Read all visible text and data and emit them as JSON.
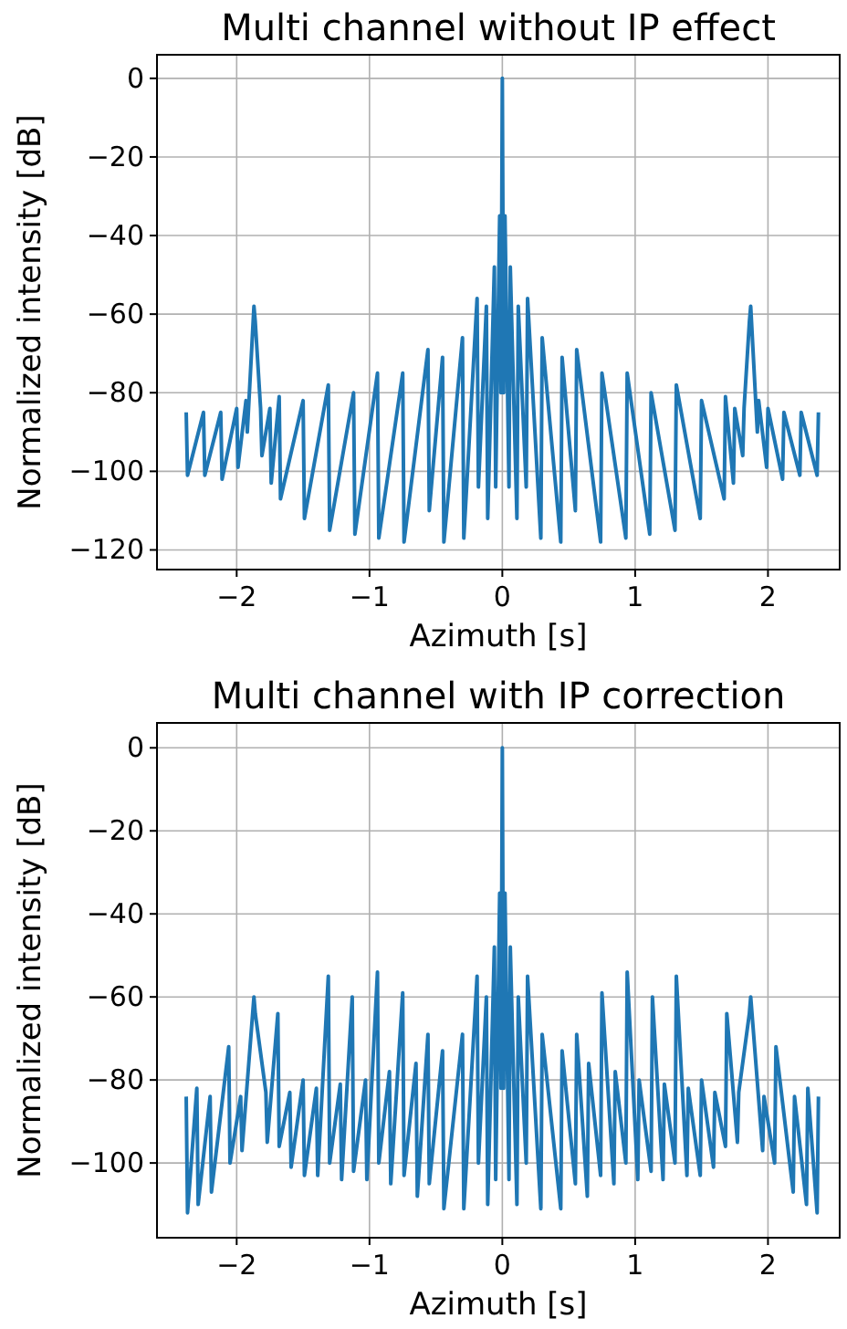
{
  "chart_data": [
    {
      "type": "line",
      "title": "Multi channel without IP effect",
      "xlabel": "Azimuth [s]",
      "ylabel": "Normalized intensity [dB]",
      "xlim": [
        -2.6,
        2.54
      ],
      "ylim": [
        -125,
        6
      ],
      "xticks": [
        -2,
        -1,
        0,
        1,
        2
      ],
      "yticks": [
        -120,
        -100,
        -80,
        -60,
        -40,
        -20,
        0
      ],
      "grid": true,
      "series": [
        {
          "color": "#1f77b4",
          "x": [
            -2.38,
            -2.37,
            -2.25,
            -2.24,
            -2.12,
            -2.11,
            -2.0,
            -1.99,
            -1.93,
            -1.92,
            -1.87,
            -1.86,
            -1.82,
            -1.81,
            -1.75,
            -1.74,
            -1.68,
            -1.67,
            -1.5,
            -1.49,
            -1.31,
            -1.3,
            -1.12,
            -1.11,
            -0.94,
            -0.93,
            -0.75,
            -0.74,
            -0.56,
            -0.55,
            -0.45,
            -0.44,
            -0.3,
            -0.29,
            -0.19,
            -0.18,
            -0.12,
            -0.11,
            -0.06,
            -0.05,
            -0.02,
            -0.01,
            0,
            0.01,
            0.02,
            0.05,
            0.06,
            0.11,
            0.12,
            0.18,
            0.19,
            0.29,
            0.3,
            0.44,
            0.45,
            0.55,
            0.56,
            0.74,
            0.75,
            0.93,
            0.94,
            1.11,
            1.12,
            1.3,
            1.31,
            1.49,
            1.5,
            1.67,
            1.68,
            1.74,
            1.75,
            1.81,
            1.82,
            1.86,
            1.87,
            1.92,
            1.93,
            1.99,
            2.0,
            2.11,
            2.12,
            2.24,
            2.25,
            2.37,
            2.38
          ],
          "values": [
            -85,
            -101,
            -85,
            -101,
            -85,
            -102,
            -84,
            -99,
            -82,
            -90,
            -58,
            -62,
            -84,
            -96,
            -84,
            -103,
            -81,
            -107,
            -82,
            -112,
            -78,
            -115,
            -80,
            -116,
            -75,
            -117,
            -75,
            -118,
            -69,
            -110,
            -71,
            -118,
            -66,
            -117,
            -56,
            -104,
            -58,
            -112,
            -48,
            -104,
            -35,
            -80,
            0,
            -80,
            -35,
            -104,
            -48,
            -112,
            -58,
            -104,
            -56,
            -117,
            -66,
            -118,
            -71,
            -110,
            -69,
            -118,
            -75,
            -117,
            -75,
            -116,
            -80,
            -115,
            -78,
            -112,
            -82,
            -107,
            -81,
            -103,
            -84,
            -96,
            -84,
            -62,
            -58,
            -90,
            -82,
            -99,
            -84,
            -102,
            -85,
            -101,
            -85,
            -101,
            -85
          ]
        }
      ]
    },
    {
      "type": "line",
      "title": "Multi channel with IP correction",
      "xlabel": "Azimuth [s]",
      "ylabel": "Normalized intensity [dB]",
      "xlim": [
        -2.6,
        2.54
      ],
      "ylim": [
        -118,
        6
      ],
      "xticks": [
        -2,
        -1,
        0,
        1,
        2
      ],
      "yticks": [
        -100,
        -80,
        -60,
        -40,
        -20,
        0
      ],
      "grid": true,
      "series": [
        {
          "color": "#1f77b4",
          "x": [
            -2.38,
            -2.37,
            -2.3,
            -2.29,
            -2.2,
            -2.19,
            -2.06,
            -2.05,
            -1.97,
            -1.96,
            -1.87,
            -1.86,
            -1.78,
            -1.77,
            -1.69,
            -1.68,
            -1.6,
            -1.59,
            -1.5,
            -1.49,
            -1.4,
            -1.39,
            -1.31,
            -1.3,
            -1.22,
            -1.21,
            -1.13,
            -1.12,
            -1.03,
            -1.02,
            -0.94,
            -0.93,
            -0.85,
            -0.84,
            -0.75,
            -0.74,
            -0.65,
            -0.64,
            -0.56,
            -0.55,
            -0.45,
            -0.44,
            -0.3,
            -0.29,
            -0.19,
            -0.18,
            -0.12,
            -0.11,
            -0.06,
            -0.05,
            -0.02,
            -0.01,
            0,
            0.01,
            0.02,
            0.05,
            0.06,
            0.11,
            0.12,
            0.18,
            0.19,
            0.29,
            0.3,
            0.44,
            0.45,
            0.55,
            0.56,
            0.64,
            0.65,
            0.74,
            0.75,
            0.84,
            0.85,
            0.93,
            0.94,
            1.02,
            1.03,
            1.12,
            1.13,
            1.21,
            1.22,
            1.3,
            1.31,
            1.39,
            1.4,
            1.49,
            1.5,
            1.59,
            1.6,
            1.68,
            1.69,
            1.77,
            1.78,
            1.86,
            1.87,
            1.96,
            1.97,
            2.05,
            2.06,
            2.19,
            2.2,
            2.29,
            2.3,
            2.37,
            2.38
          ],
          "values": [
            -84,
            -112,
            -82,
            -110,
            -84,
            -107,
            -72,
            -100,
            -84,
            -97,
            -60,
            -64,
            -83,
            -95,
            -64,
            -96,
            -83,
            -101,
            -80,
            -103,
            -82,
            -103,
            -55,
            -100,
            -81,
            -104,
            -60,
            -102,
            -80,
            -104,
            -54,
            -100,
            -78,
            -105,
            -59,
            -103,
            -76,
            -108,
            -69,
            -105,
            -73,
            -111,
            -69,
            -111,
            -55,
            -100,
            -60,
            -110,
            -48,
            -104,
            -35,
            -82,
            0,
            -82,
            -35,
            -104,
            -48,
            -110,
            -60,
            -100,
            -55,
            -111,
            -69,
            -111,
            -73,
            -105,
            -69,
            -108,
            -76,
            -103,
            -59,
            -105,
            -78,
            -100,
            -54,
            -104,
            -80,
            -102,
            -60,
            -104,
            -81,
            -100,
            -55,
            -103,
            -82,
            -103,
            -80,
            -101,
            -83,
            -96,
            -64,
            -95,
            -83,
            -64,
            -60,
            -97,
            -84,
            -100,
            -72,
            -107,
            -84,
            -110,
            -82,
            -112,
            -84
          ]
        }
      ]
    }
  ]
}
